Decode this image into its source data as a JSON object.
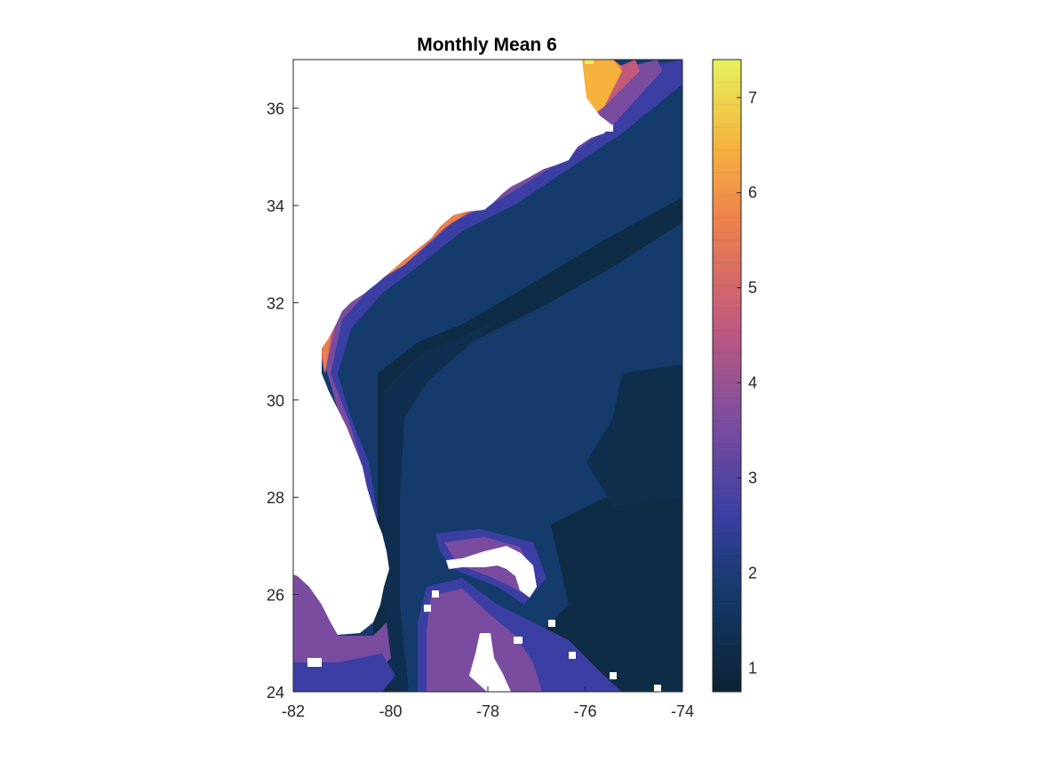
{
  "chart_data": {
    "type": "heatmap",
    "title": "Monthly Mean 6",
    "xlabel": "",
    "ylabel": "",
    "xlim": [
      -82,
      -74
    ],
    "ylim": [
      24,
      37
    ],
    "x_ticks": [
      "-82",
      "-80",
      "-78",
      "-76",
      "-74"
    ],
    "y_ticks": [
      "24",
      "26",
      "28",
      "30",
      "32",
      "34",
      "36"
    ],
    "colorbar": {
      "range": [
        0.75,
        7.4
      ],
      "ticks": [
        "1",
        "2",
        "3",
        "4",
        "5",
        "6",
        "7"
      ],
      "levels": 28,
      "colors": [
        "#0c2233",
        "#143b6b",
        "#3b3fa3",
        "#794ca0",
        "#c25a7e",
        "#ec7f4d",
        "#f6b13f",
        "#e6f25a"
      ]
    },
    "background_value_offshore": 1.0,
    "gulf_stream_value": 1.3,
    "coastal_band_peak_value_north": 6.2,
    "coastal_band_peak_value_south": 3.5,
    "land_color": "#ffffff"
  }
}
